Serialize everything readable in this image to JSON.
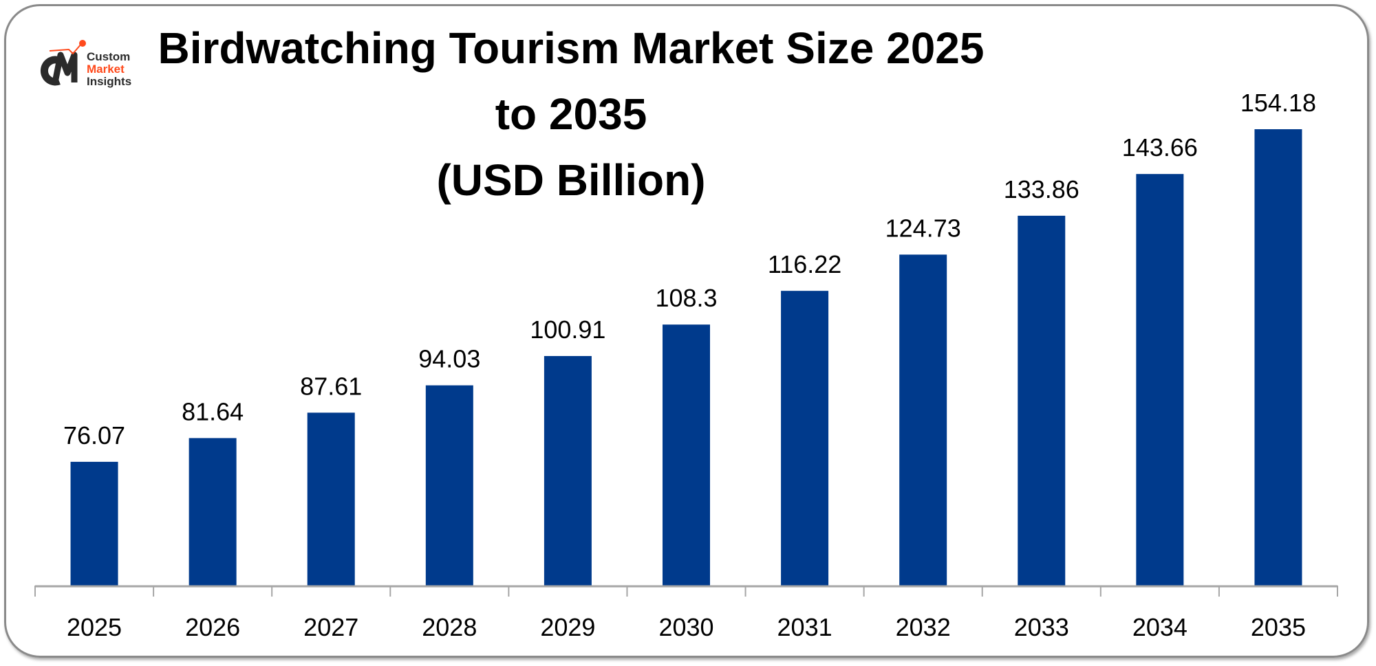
{
  "logo": {
    "line1": "Custom",
    "line2": "Market",
    "line3": "Insights",
    "mark": "CMI"
  },
  "colors": {
    "bar": "#003A8C",
    "logo_dark": "#2b2b2b",
    "logo_accent": "#ff4a1c"
  },
  "chart_data": {
    "type": "bar",
    "title_line1": "Birdwatching Tourism Market Size 2025 to 2035",
    "title_line2": "(USD Billion)",
    "categories": [
      "2025",
      "2026",
      "2027",
      "2028",
      "2029",
      "2030",
      "2031",
      "2032",
      "2033",
      "2034",
      "2035"
    ],
    "values": [
      76.07,
      81.64,
      87.61,
      94.03,
      100.91,
      108.3,
      116.22,
      124.73,
      133.86,
      143.66,
      154.18
    ],
    "data_labels": [
      "76.07",
      "81.64",
      "87.61",
      "94.03",
      "100.91",
      "108.3",
      "116.22",
      "124.73",
      "133.86",
      "143.66",
      "154.18"
    ],
    "xlabel": "",
    "ylabel": "",
    "grid": false,
    "legend": "none"
  }
}
